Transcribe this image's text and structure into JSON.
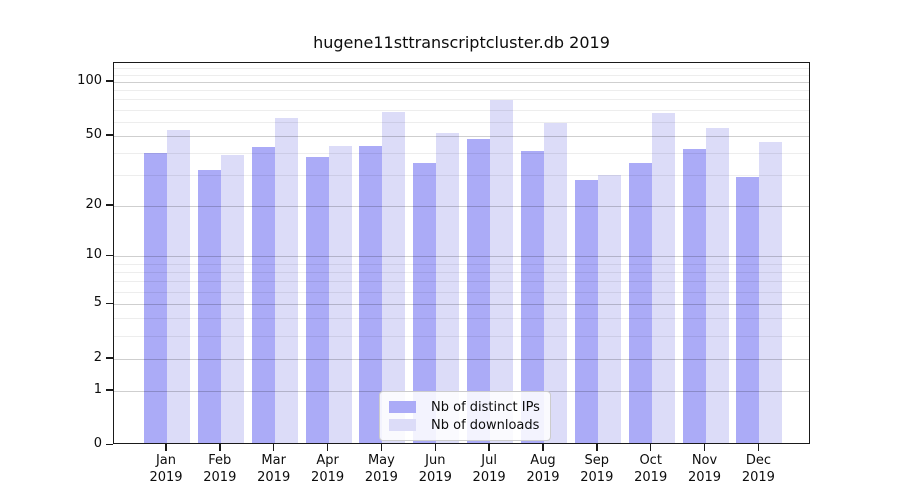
{
  "chart_data": {
    "type": "bar",
    "title": "hugene11sttranscriptcluster.db 2019",
    "categories": [
      "Jan",
      "Feb",
      "Mar",
      "Apr",
      "May",
      "Jun",
      "Jul",
      "Aug",
      "Sep",
      "Oct",
      "Nov",
      "Dec"
    ],
    "year_label": "2019",
    "series": [
      {
        "name": "Nb of distinct IPs",
        "color": "#ababf7",
        "values": [
          40,
          32,
          43,
          38,
          44,
          35,
          48,
          41,
          28,
          35,
          42,
          29
        ]
      },
      {
        "name": "Nb of downloads",
        "color": "#dcdcf8",
        "values": [
          54,
          39,
          63,
          44,
          68,
          52,
          79,
          59,
          30,
          67,
          55,
          46
        ]
      }
    ],
    "scale": "log1p",
    "ylim": [
      0,
      127.5
    ],
    "yticks": [
      0,
      1,
      2,
      5,
      10,
      20,
      50,
      100
    ],
    "minor_yticks": [
      3,
      4,
      6,
      7,
      8,
      9,
      30,
      40,
      60,
      70,
      80,
      90,
      110,
      120
    ],
    "grid": true,
    "grid_above_bars": true,
    "legend_position": "bottom-center",
    "xlabel": "",
    "ylabel": ""
  },
  "colors": {
    "bar_ips": "#ababf7",
    "bar_downloads": "#dcdcf8",
    "axis": "#1a1a1a",
    "legend_border": "#cccccc"
  }
}
